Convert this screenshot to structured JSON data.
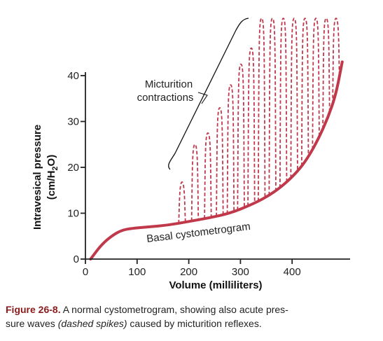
{
  "chart_data": {
    "type": "line",
    "xlabel": "Volume (milliliters)",
    "ylabel_line1": "Intravesical pressure",
    "ylabel_line2_pre": "(cm/H",
    "ylabel_line2_sub": "2",
    "ylabel_line2_post": "O)",
    "xlim": [
      0,
      500
    ],
    "ylim": [
      0,
      45
    ],
    "x_ticks": [
      "0",
      "100",
      "200",
      "300",
      "400"
    ],
    "y_ticks": [
      "0",
      "10",
      "20",
      "30",
      "40"
    ],
    "series": [
      {
        "name": "Basal cystometrogram",
        "style": "solid",
        "color": "#c0394b",
        "x": [
          10,
          30,
          50,
          70,
          90,
          120,
          160,
          200,
          240,
          280,
          320,
          350,
          380,
          410,
          430,
          450,
          470,
          485,
          497
        ],
        "y": [
          0,
          3,
          5,
          6.3,
          6.7,
          7.0,
          7.4,
          8.2,
          9.0,
          10.0,
          11.8,
          13.5,
          15.8,
          19.0,
          22,
          26,
          31,
          36,
          43
        ]
      }
    ],
    "spikes": {
      "style": "dashed",
      "color": "#c0394b",
      "x": [
        187,
        212,
        237,
        260,
        281,
        301,
        321,
        341,
        362,
        383,
        404,
        425,
        446,
        466,
        485
      ],
      "peak": [
        16.8,
        25,
        27.5,
        33,
        38,
        42.5,
        46,
        53,
        53,
        53,
        53,
        53,
        53,
        53,
        53
      ]
    },
    "annotations": {
      "bracket_label_line1": "Micturition",
      "bracket_label_line2": "contractions",
      "curve_label": "Basal cystometrogram"
    },
    "grid": false
  },
  "caption": {
    "label": "Figure 26-8.",
    "text_before": " A normal cystometrogram, showing also acute pres-",
    "text_line2_pre": "sure waves ",
    "text_italic": "(dashed spikes)",
    "text_line2_post": " caused by micturition reflexes."
  }
}
